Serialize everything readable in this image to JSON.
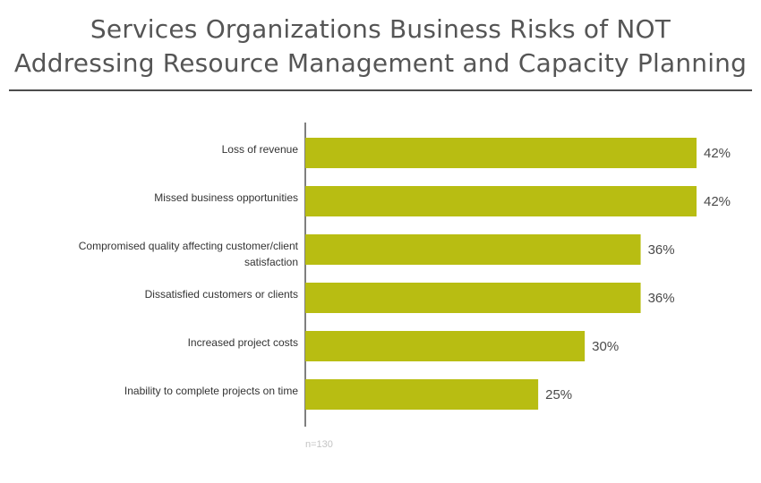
{
  "chart_data": {
    "type": "bar",
    "orientation": "horizontal",
    "title": "Services Organizations Business Risks of NOT Addressing Resource Management and Capacity Planning",
    "title_lines": [
      "Services Organizations Business Risks of NOT",
      "Addressing Resource Management and Capacity Planning"
    ],
    "categories": [
      [
        "Loss of revenue"
      ],
      [
        "Missed business opportunities"
      ],
      [
        "Compromised quality affecting customer/client",
        "satisfaction"
      ],
      [
        "Dissatisfied customers or clients"
      ],
      [
        "Increased project costs"
      ],
      [
        "Inability to complete projects on time"
      ]
    ],
    "values": [
      42,
      42,
      36,
      36,
      30,
      25
    ],
    "value_labels": [
      "42%",
      "42%",
      "36%",
      "36%",
      "30%",
      "25%"
    ],
    "xlim": [
      0,
      42
    ],
    "xlabel": "",
    "ylabel": "",
    "grid": false,
    "bar_color": "#b8bd12",
    "note": "n=130"
  }
}
